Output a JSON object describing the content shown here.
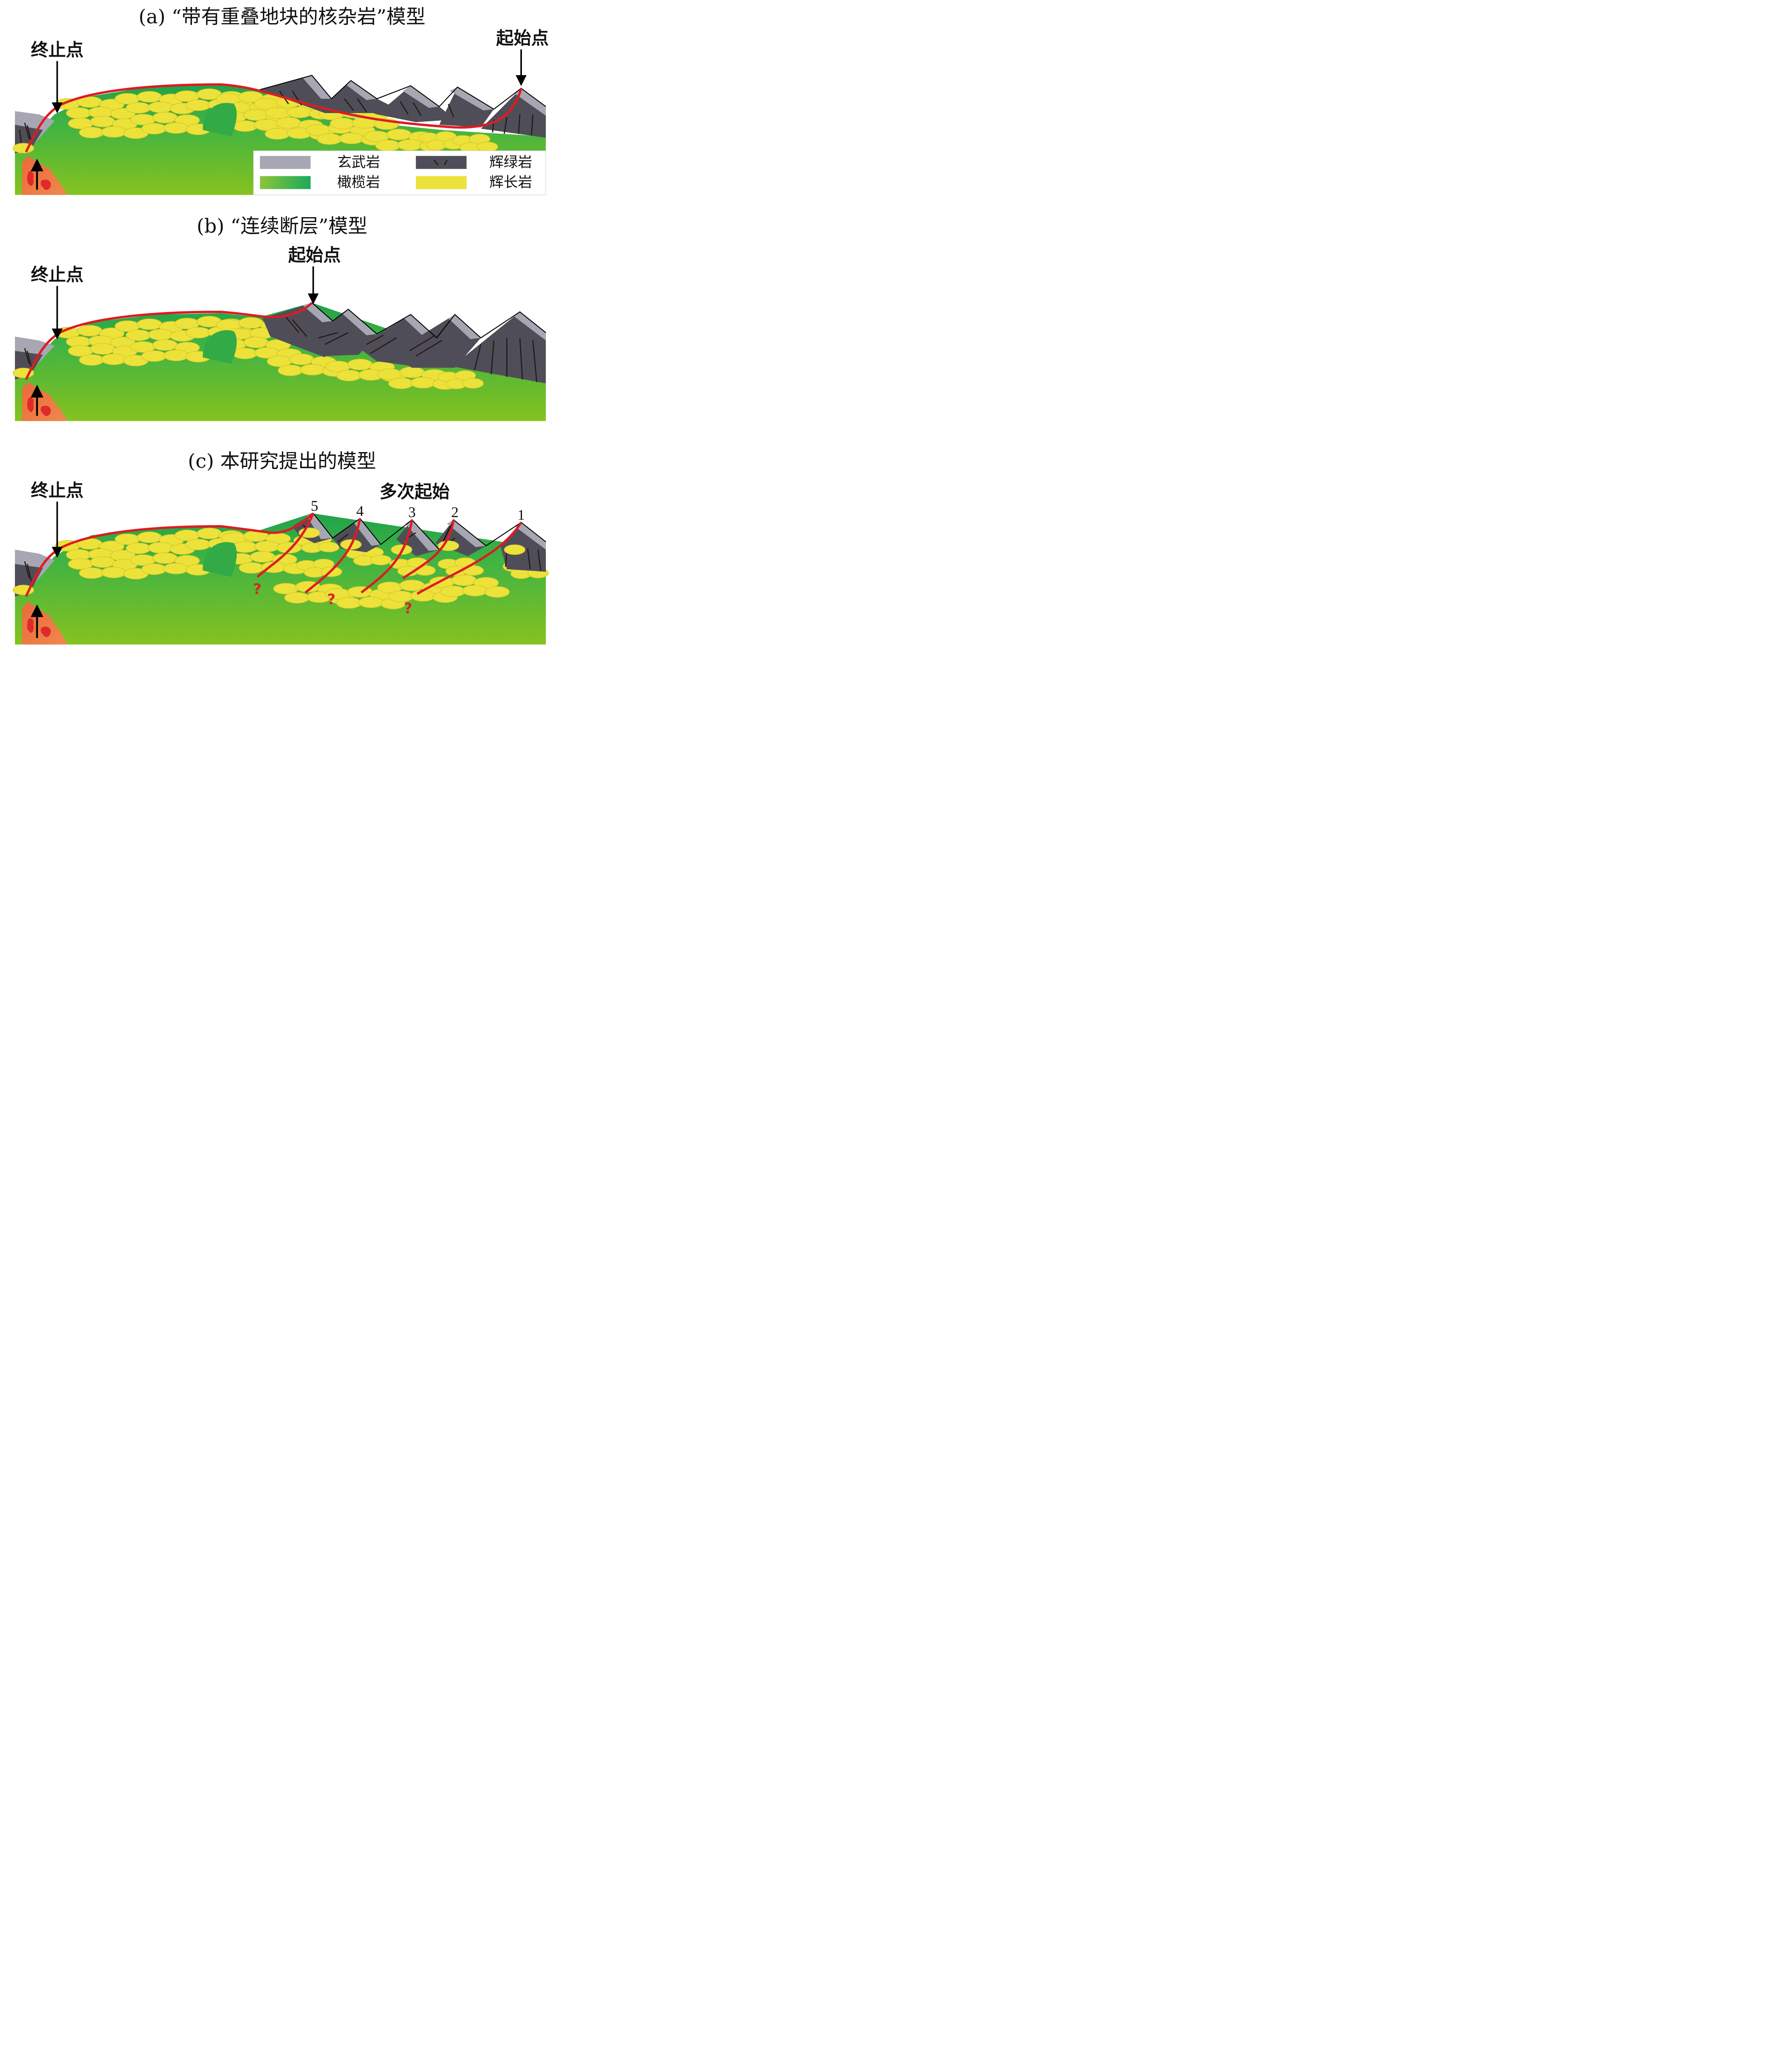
{
  "panel_a": {
    "title": "(a) “带有重叠地块的核杂岩”模型",
    "termination_label": "终止点",
    "initiation_label": "起始点"
  },
  "panel_b": {
    "title": "(b) “连续断层”模型",
    "termination_label": "终止点",
    "initiation_label": "起始点"
  },
  "panel_c": {
    "title": "(c) 本研究提出的模型",
    "termination_label": "终止点",
    "multiple_initiation_label": "多次起始",
    "numbers": [
      "5",
      "4",
      "3",
      "2",
      "1"
    ],
    "question_mark": "?"
  },
  "legend": {
    "basalt": "玄武岩",
    "diabase": "辉绿岩",
    "peridotite": "橄榄岩",
    "gabbro": "辉长岩"
  },
  "colors": {
    "basalt": "#a7a7b4",
    "diabase": "#4f4e58",
    "peridotite_light": "#8cc43a",
    "peridotite_dark": "#1aaa5c",
    "gabbro": "#ece23a",
    "fault": "#dd1c22",
    "magma": "#ea6a3a"
  }
}
